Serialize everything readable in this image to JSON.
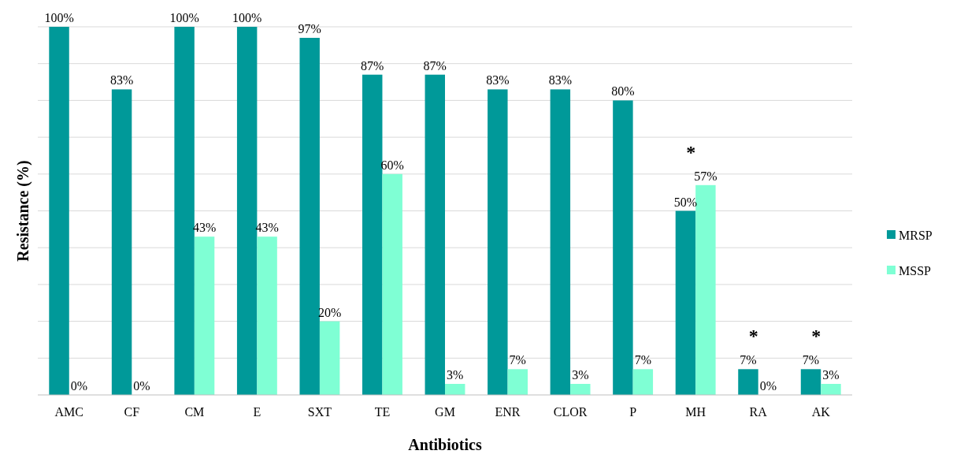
{
  "chart_data": {
    "type": "bar",
    "xlabel": "Antibiotics",
    "ylabel": "Resistance (%)",
    "categories": [
      "AMC",
      "CF",
      "CM",
      "E",
      "SXT",
      "TE",
      "GM",
      "ENR",
      "CLOR",
      "P",
      "MH",
      "RA",
      "AK"
    ],
    "series": [
      {
        "name": "MRSP",
        "color": "#009999",
        "values": [
          100,
          83,
          100,
          100,
          97,
          87,
          87,
          83,
          83,
          80,
          50,
          7,
          7
        ],
        "value_labels": [
          "100%",
          "83%",
          "100%",
          "100%",
          "97%",
          "87%",
          "87%",
          "83%",
          "83%",
          "80%",
          "50%",
          "7%",
          "7%"
        ]
      },
      {
        "name": "MSSP",
        "color": "#7fffd4",
        "values": [
          0,
          0,
          43,
          43,
          20,
          60,
          3,
          7,
          3,
          7,
          57,
          0,
          3
        ],
        "value_labels": [
          "0%",
          "0%",
          "43%",
          "43%",
          "20%",
          "60%",
          "3%",
          "7%",
          "3%",
          "7%",
          "57%",
          "0%",
          "3%"
        ]
      }
    ],
    "ylim": [
      0,
      100
    ],
    "yticks": [
      {
        "value": 0,
        "label": null
      },
      {
        "value": 10,
        "label": null
      },
      {
        "value": 20,
        "label": null
      },
      {
        "value": 30,
        "label": null
      },
      {
        "value": 40,
        "label": null
      },
      {
        "value": 50,
        "label": null
      },
      {
        "value": 60,
        "label": null
      },
      {
        "value": 70,
        "label": null
      },
      {
        "value": 80,
        "label": null
      },
      {
        "value": 90,
        "label": null
      },
      {
        "value": 100,
        "label": null
      }
    ],
    "grid": "y",
    "legend": "right",
    "annotations": [
      "*",
      "*",
      "*"
    ]
  }
}
